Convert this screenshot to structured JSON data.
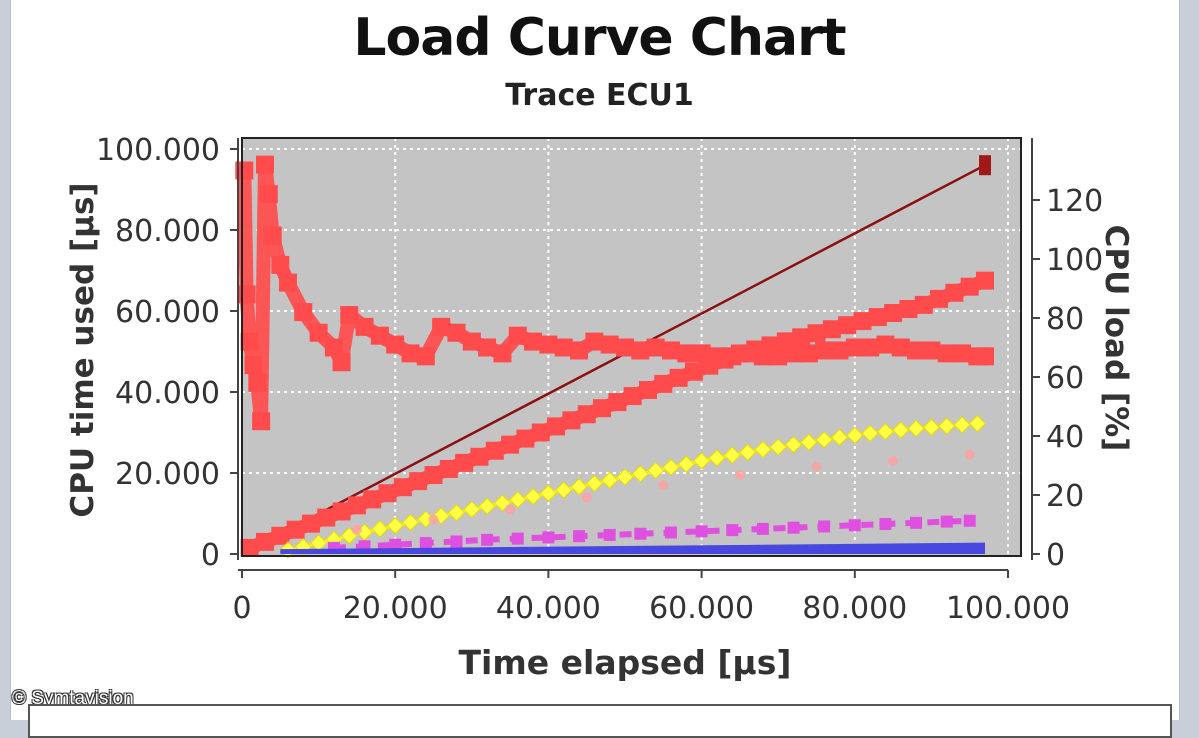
{
  "chart_data": {
    "type": "line",
    "title": "Load Curve Chart",
    "subtitle": "Trace ECU1",
    "xlabel": "Time elapsed [µs]",
    "ylabel": "CPU time used [µs]",
    "y2label": "CPU load [%]",
    "xlim": [
      0,
      100000
    ],
    "ylim": [
      0,
      100000
    ],
    "y2lim": [
      0,
      135
    ],
    "x_ticks": [
      "0",
      "20.000",
      "40.000",
      "60.000",
      "80.000",
      "100.000"
    ],
    "y_ticks": [
      "0",
      "20.000",
      "40.000",
      "60.000",
      "80.000",
      "100.000"
    ],
    "y2_ticks": [
      "0",
      "20",
      "40",
      "60",
      "80",
      "100",
      "120"
    ],
    "grid": true,
    "colors": {
      "plot_background": "#c4c4c4",
      "diagonal": "#8b1010",
      "load": "#ff4b4b",
      "yellow": "#ffff44",
      "pink": "#ffa0a0",
      "magenta": "#e050e0",
      "blue": "#4848e0"
    },
    "series": [
      {
        "axis": "left",
        "style": "line",
        "color": "#8b1010",
        "x": [
          0,
          97000
        ],
        "y": [
          0,
          96000
        ]
      },
      {
        "axis": "right",
        "style": "squares",
        "color": "#ff4b4b",
        "x": [
          300,
          600,
          1000,
          1500,
          2000,
          2500,
          3000,
          3500,
          4000,
          5000,
          6000,
          8000,
          10000,
          12000,
          13000,
          14000,
          16000,
          18000,
          20000,
          22000,
          24000,
          26000,
          28000,
          30000,
          32000,
          34000,
          36000,
          38000,
          40000,
          42000,
          44000,
          46000,
          48000,
          50000,
          52000,
          54000,
          56000,
          58000,
          60000,
          62000,
          64000,
          66000,
          68000,
          70000,
          72000,
          74000,
          76000,
          78000,
          80000,
          82000,
          84000,
          86000,
          88000,
          90000,
          92000,
          94000,
          96000,
          97000
        ],
        "y": [
          130,
          88,
          72,
          64,
          58,
          45,
          132,
          122,
          108,
          98,
          92,
          82,
          75,
          70,
          65,
          81,
          77,
          74,
          71,
          68,
          67,
          77,
          75,
          72,
          70,
          68,
          74,
          72,
          71,
          70,
          69,
          72,
          71,
          70,
          69,
          70,
          69,
          68,
          68,
          67,
          67,
          68,
          67,
          67,
          68,
          68,
          69,
          69,
          70,
          70,
          71,
          70,
          69,
          69,
          68,
          68,
          67,
          67
        ]
      },
      {
        "axis": "left",
        "style": "squares",
        "color": "#ff4b4b",
        "x": [
          1000,
          3000,
          5000,
          7000,
          9000,
          11000,
          13000,
          15000,
          17000,
          19000,
          21000,
          23000,
          25000,
          27000,
          29000,
          31000,
          33000,
          35000,
          37000,
          39000,
          41000,
          43000,
          45000,
          47000,
          49000,
          51000,
          53000,
          55000,
          57000,
          59000,
          61000,
          63000,
          65000,
          67000,
          69000,
          71000,
          73000,
          75000,
          77000,
          79000,
          81000,
          83000,
          85000,
          87000,
          89000,
          91000,
          93000,
          95000,
          97000
        ],
        "y": [
          1500,
          3000,
          4500,
          6000,
          7500,
          9000,
          10500,
          12000,
          13500,
          15000,
          16500,
          18000,
          19500,
          21000,
          22500,
          24000,
          25500,
          27000,
          28500,
          30000,
          31500,
          33000,
          34500,
          36000,
          37500,
          39000,
          40500,
          42000,
          43500,
          45000,
          46500,
          48000,
          49500,
          50500,
          51500,
          52500,
          53500,
          54500,
          55500,
          56500,
          57500,
          58500,
          59500,
          60500,
          61500,
          63000,
          64500,
          66000,
          67500
        ]
      },
      {
        "axis": "left",
        "style": "diamonds",
        "color": "#ffff44",
        "x": [
          6000,
          8000,
          10000,
          12000,
          14000,
          16000,
          18000,
          20000,
          22000,
          24000,
          26000,
          28000,
          30000,
          32000,
          34000,
          36000,
          38000,
          40000,
          42000,
          44000,
          46000,
          48000,
          50000,
          52000,
          54000,
          56000,
          58000,
          60000,
          62000,
          64000,
          66000,
          68000,
          70000,
          72000,
          74000,
          76000,
          78000,
          80000,
          82000,
          84000,
          86000,
          88000,
          90000,
          92000,
          94000,
          96000
        ],
        "y": [
          1000,
          1800,
          2700,
          3600,
          4500,
          5400,
          6200,
          7000,
          7800,
          8600,
          9400,
          10200,
          11000,
          11800,
          12600,
          13400,
          14200,
          15000,
          15800,
          16600,
          17400,
          18200,
          19000,
          19800,
          20600,
          21400,
          22200,
          23000,
          23700,
          24400,
          25100,
          25800,
          26400,
          27000,
          27600,
          28200,
          28800,
          29300,
          29800,
          30200,
          30600,
          31000,
          31300,
          31600,
          31900,
          32200
        ]
      },
      {
        "axis": "left",
        "style": "dots",
        "color": "#ffa0a0",
        "x": [
          15000,
          25000,
          35000,
          45000,
          55000,
          65000,
          75000,
          85000,
          95000
        ],
        "y": [
          6000,
          8500,
          11000,
          14000,
          17000,
          19500,
          21500,
          23000,
          24500
        ]
      },
      {
        "axis": "left",
        "style": "dashes",
        "color": "#e050e0",
        "x": [
          12000,
          16000,
          20000,
          24000,
          28000,
          32000,
          36000,
          40000,
          44000,
          48000,
          52000,
          56000,
          60000,
          64000,
          68000,
          72000,
          76000,
          80000,
          84000,
          88000,
          92000,
          95000
        ],
        "y": [
          1500,
          1900,
          2300,
          2700,
          3100,
          3500,
          3800,
          4100,
          4400,
          4700,
          5000,
          5300,
          5600,
          5900,
          6200,
          6500,
          6800,
          7100,
          7400,
          7700,
          8000,
          8200
        ]
      },
      {
        "axis": "left",
        "style": "band",
        "color": "#4848e0",
        "x": [
          5000,
          97000
        ],
        "y": [
          1200,
          2800
        ]
      }
    ]
  },
  "credit": "© Symtavision"
}
